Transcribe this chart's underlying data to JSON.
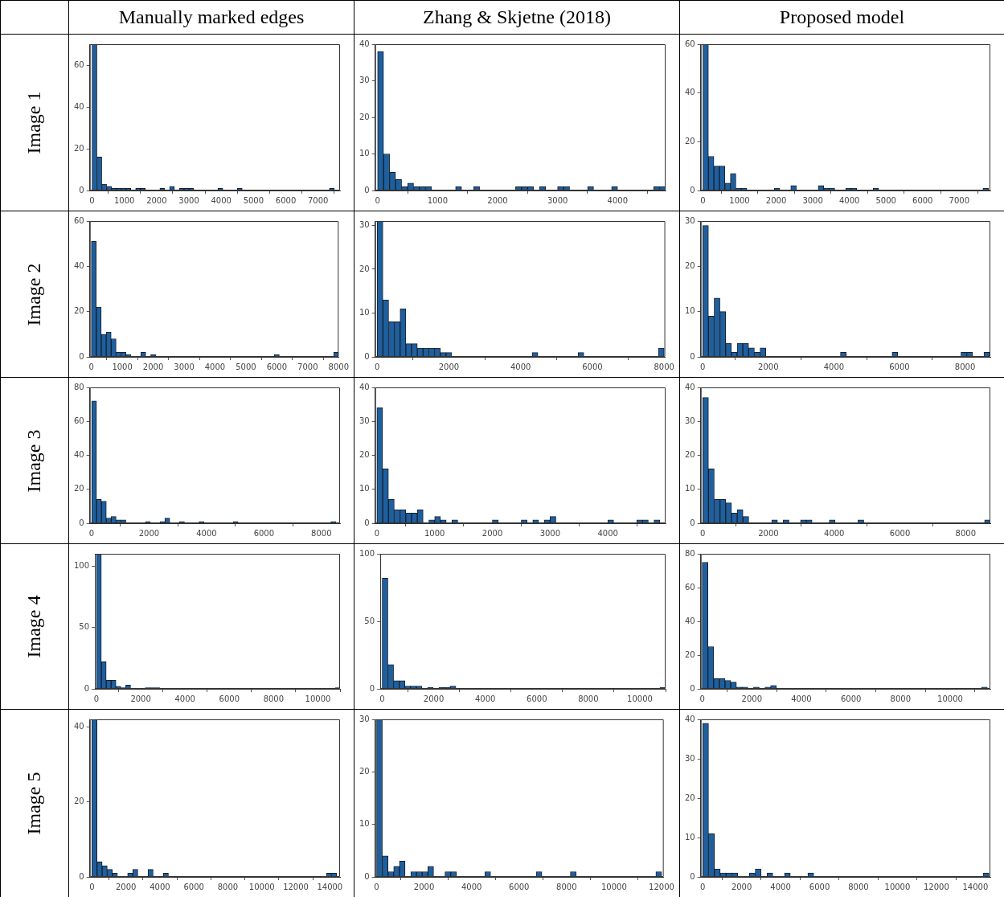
{
  "chart_data": [
    {
      "type": "histogram",
      "title": "Manually marked edges",
      "ylabel": "Image 1",
      "color": "#1f5f9e",
      "xlim": [
        -70,
        7680
      ],
      "ylim": [
        0,
        70
      ],
      "xticks": [
        0,
        1000,
        2000,
        3000,
        4000,
        5000,
        6000,
        7000
      ],
      "yticks": [
        0,
        20,
        40,
        60
      ],
      "bins": [
        0,
        150,
        300,
        450,
        600,
        750,
        900,
        1050,
        1200,
        1350,
        1500,
        1650,
        1800,
        1950,
        2100,
        2250,
        2400,
        2550,
        2700,
        2850,
        3000,
        3150,
        3300,
        3450,
        3600,
        3750,
        3900,
        4050,
        4200,
        4350,
        4500,
        4650,
        4800,
        4950,
        5100,
        5250,
        5400,
        5550,
        5700,
        5850,
        6000,
        6150,
        6300,
        6450,
        6600,
        6750,
        6900,
        7050,
        7200,
        7350,
        7500
      ],
      "values": [
        70,
        16,
        3,
        2,
        1,
        1,
        1,
        1,
        0,
        1,
        1,
        0,
        0,
        0,
        1,
        0,
        2,
        0,
        1,
        1,
        1,
        0,
        0,
        0,
        0,
        0,
        1,
        0,
        0,
        0,
        1,
        0,
        0,
        0,
        0,
        0,
        0,
        0,
        0,
        0,
        0,
        0,
        0,
        0,
        0,
        0,
        0,
        0,
        0,
        1
      ]
    },
    {
      "type": "histogram",
      "title": "Zhang & Skjetne (2018)",
      "color": "#1f5f9e",
      "xlim": [
        -40,
        4800
      ],
      "ylim": [
        0,
        40
      ],
      "xticks": [
        0,
        1000,
        2000,
        3000,
        4000
      ],
      "yticks": [
        0,
        10,
        20,
        30,
        40
      ],
      "bins": [
        0,
        100,
        200,
        300,
        400,
        500,
        600,
        700,
        800,
        900,
        1000,
        1100,
        1200,
        1300,
        1400,
        1500,
        1600,
        1700,
        1800,
        1900,
        2000,
        2100,
        2200,
        2300,
        2400,
        2500,
        2600,
        2700,
        2800,
        2900,
        3000,
        3100,
        3200,
        3300,
        3400,
        3500,
        3600,
        3700,
        3800,
        3900,
        4000,
        4100,
        4200,
        4300,
        4400,
        4500,
        4600,
        4700,
        4800
      ],
      "values": [
        38,
        10,
        5,
        3,
        1,
        2,
        1,
        1,
        1,
        0,
        0,
        0,
        0,
        1,
        0,
        0,
        1,
        0,
        0,
        0,
        0,
        0,
        0,
        1,
        1,
        1,
        0,
        1,
        0,
        0,
        1,
        1,
        0,
        0,
        0,
        1,
        0,
        0,
        0,
        1,
        0,
        0,
        0,
        0,
        0,
        0,
        1,
        1
      ]
    },
    {
      "type": "histogram",
      "title": "Proposed model",
      "color": "#1f5f9e",
      "xlim": [
        -60,
        7850
      ],
      "ylim": [
        0,
        60
      ],
      "xticks": [
        0,
        1000,
        2000,
        3000,
        4000,
        5000,
        6000,
        7000
      ],
      "yticks": [
        0,
        20,
        40,
        60
      ],
      "bins": [
        0,
        150,
        300,
        450,
        600,
        750,
        900,
        1050,
        1200,
        1350,
        1500,
        1650,
        1800,
        1950,
        2100,
        2250,
        2400,
        2550,
        2700,
        2850,
        3000,
        3150,
        3300,
        3450,
        3600,
        3750,
        3900,
        4050,
        4200,
        4350,
        4500,
        4650,
        4800,
        4950,
        5100,
        5250,
        5400,
        5550,
        5700,
        5850,
        6000,
        6150,
        6300,
        6450,
        6600,
        6750,
        6900,
        7050,
        7200,
        7350,
        7500,
        7650,
        7800
      ],
      "values": [
        60,
        14,
        10,
        10,
        3,
        7,
        1,
        1,
        0,
        0,
        0,
        0,
        0,
        1,
        0,
        0,
        2,
        0,
        0,
        0,
        0,
        2,
        1,
        1,
        0,
        0,
        1,
        1,
        0,
        0,
        0,
        1,
        0,
        0,
        0,
        0,
        0,
        0,
        0,
        0,
        0,
        0,
        0,
        0,
        0,
        0,
        0,
        0,
        0,
        0,
        0,
        1
      ]
    },
    {
      "type": "histogram",
      "ylabel": "Image 2",
      "color": "#1f5f9e",
      "xlim": [
        -50,
        8000
      ],
      "ylim": [
        0,
        60
      ],
      "xticks": [
        0,
        1000,
        2000,
        3000,
        4000,
        5000,
        6000,
        7000,
        8000
      ],
      "yticks": [
        0,
        20,
        40,
        60
      ],
      "bins": [
        0,
        160,
        320,
        480,
        640,
        800,
        960,
        1120,
        1280,
        1440,
        1600,
        1760,
        1920,
        2080,
        2240,
        2400,
        2560,
        2720,
        2880,
        3040,
        3200,
        3360,
        3520,
        3680,
        3840,
        4000,
        4160,
        4320,
        4480,
        4640,
        4800,
        4960,
        5120,
        5280,
        5440,
        5600,
        5760,
        5920,
        6080,
        6240,
        6400,
        6560,
        6720,
        6880,
        7040,
        7200,
        7360,
        7520,
        7680,
        7840,
        8000
      ],
      "values": [
        51,
        22,
        10,
        11,
        8,
        2,
        2,
        1,
        0,
        0,
        2,
        0,
        1,
        0,
        0,
        0,
        0,
        0,
        0,
        0,
        0,
        0,
        0,
        0,
        0,
        0,
        0,
        0,
        0,
        0,
        0,
        0,
        0,
        0,
        0,
        0,
        0,
        1,
        0,
        0,
        0,
        0,
        0,
        0,
        0,
        0,
        0,
        0,
        0,
        2
      ]
    },
    {
      "type": "histogram",
      "color": "#1f5f9e",
      "xlim": [
        -55,
        8030
      ],
      "ylim": [
        0,
        31
      ],
      "xticks": [
        0,
        2000,
        4000,
        6000,
        8000
      ],
      "yticks": [
        0,
        10,
        20,
        30
      ],
      "bins": [
        0,
        160,
        320,
        480,
        640,
        800,
        960,
        1120,
        1280,
        1440,
        1600,
        1760,
        1920,
        2080,
        2240,
        2400,
        2560,
        2720,
        2880,
        3040,
        3200,
        3360,
        3520,
        3680,
        3840,
        4000,
        4160,
        4320,
        4480,
        4640,
        4800,
        4960,
        5120,
        5280,
        5440,
        5600,
        5760,
        5920,
        6080,
        6240,
        6400,
        6560,
        6720,
        6880,
        7040,
        7200,
        7360,
        7520,
        7680,
        7840,
        8000
      ],
      "values": [
        31,
        13,
        8,
        8,
        11,
        3,
        3,
        2,
        2,
        2,
        2,
        1,
        1,
        0,
        0,
        0,
        0,
        0,
        0,
        0,
        0,
        0,
        0,
        0,
        0,
        0,
        0,
        1,
        0,
        0,
        0,
        0,
        0,
        0,
        0,
        1,
        0,
        0,
        0,
        0,
        0,
        0,
        0,
        0,
        0,
        0,
        0,
        0,
        0,
        2
      ]
    },
    {
      "type": "histogram",
      "color": "#1f5f9e",
      "xlim": [
        -60,
        8770
      ],
      "ylim": [
        0,
        30
      ],
      "xticks": [
        0,
        2000,
        4000,
        6000,
        8000
      ],
      "yticks": [
        0,
        10,
        20,
        30
      ],
      "bins": [
        0,
        175,
        350,
        525,
        700,
        875,
        1050,
        1225,
        1400,
        1575,
        1750,
        1925,
        2100,
        2275,
        2450,
        2625,
        2800,
        2975,
        3150,
        3325,
        3500,
        3675,
        3850,
        4025,
        4200,
        4375,
        4550,
        4725,
        4900,
        5075,
        5250,
        5425,
        5600,
        5775,
        5950,
        6125,
        6300,
        6475,
        6650,
        6825,
        7000,
        7175,
        7350,
        7525,
        7700,
        7875,
        8050,
        8225,
        8400,
        8575,
        8750
      ],
      "values": [
        29,
        9,
        13,
        10,
        3,
        1,
        3,
        3,
        2,
        1,
        2,
        0,
        0,
        0,
        0,
        0,
        0,
        0,
        0,
        0,
        0,
        0,
        0,
        0,
        1,
        0,
        0,
        0,
        0,
        0,
        0,
        0,
        0,
        1,
        0,
        0,
        0,
        0,
        0,
        0,
        0,
        0,
        0,
        0,
        0,
        1,
        1,
        0,
        0,
        1
      ]
    },
    {
      "type": "histogram",
      "ylabel": "Image 3",
      "color": "#1f5f9e",
      "xlim": [
        -65,
        8650
      ],
      "ylim": [
        0,
        80
      ],
      "xticks": [
        0,
        2000,
        4000,
        6000,
        8000
      ],
      "yticks": [
        0,
        20,
        40,
        60,
        80
      ],
      "bins": [
        0,
        170,
        340,
        510,
        680,
        850,
        1020,
        1190,
        1360,
        1530,
        1700,
        1870,
        2040,
        2210,
        2380,
        2550,
        2720,
        2890,
        3060,
        3230,
        3400,
        3570,
        3740,
        3910,
        4080,
        4250,
        4420,
        4590,
        4760,
        4930,
        5100,
        5270,
        5440,
        5610,
        5780,
        5950,
        6120,
        6290,
        6460,
        6630,
        6800,
        6970,
        7140,
        7310,
        7480,
        7650,
        7820,
        7990,
        8160,
        8330,
        8500
      ],
      "values": [
        72,
        14,
        13,
        3,
        4,
        2,
        2,
        0,
        0,
        0,
        0,
        1,
        0,
        0,
        1,
        3,
        0,
        0,
        1,
        0,
        0,
        0,
        1,
        0,
        0,
        0,
        0,
        0,
        0,
        1,
        0,
        0,
        0,
        0,
        0,
        0,
        0,
        0,
        0,
        0,
        0,
        0,
        0,
        0,
        0,
        0,
        0,
        0,
        0,
        1
      ]
    },
    {
      "type": "histogram",
      "color": "#1f5f9e",
      "xlim": [
        -30,
        5000
      ],
      "ylim": [
        0,
        40
      ],
      "xticks": [
        0,
        1000,
        2000,
        3000,
        4000
      ],
      "yticks": [
        0,
        10,
        20,
        30,
        40
      ],
      "bins": [
        0,
        100,
        200,
        300,
        400,
        500,
        600,
        700,
        800,
        900,
        1000,
        1100,
        1200,
        1300,
        1400,
        1500,
        1600,
        1700,
        1800,
        1900,
        2000,
        2100,
        2200,
        2300,
        2400,
        2500,
        2600,
        2700,
        2800,
        2900,
        3000,
        3100,
        3200,
        3300,
        3400,
        3500,
        3600,
        3700,
        3800,
        3900,
        4000,
        4100,
        4200,
        4300,
        4400,
        4500,
        4600,
        4700,
        4800,
        4900,
        5000
      ],
      "values": [
        34,
        16,
        7,
        4,
        4,
        3,
        3,
        4,
        0,
        1,
        2,
        1,
        0,
        1,
        0,
        0,
        0,
        0,
        0,
        0,
        1,
        0,
        0,
        0,
        0,
        1,
        0,
        1,
        0,
        1,
        2,
        0,
        0,
        0,
        0,
        0,
        0,
        0,
        0,
        0,
        1,
        0,
        0,
        0,
        0,
        1,
        1,
        0,
        1,
        0
      ]
    },
    {
      "type": "histogram",
      "color": "#1f5f9e",
      "xlim": [
        -60,
        8750
      ],
      "ylim": [
        0,
        40
      ],
      "xticks": [
        0,
        2000,
        4000,
        6000,
        8000
      ],
      "yticks": [
        0,
        10,
        20,
        30,
        40
      ],
      "bins": [
        0,
        175,
        350,
        525,
        700,
        875,
        1050,
        1225,
        1400,
        1575,
        1750,
        1925,
        2100,
        2275,
        2450,
        2625,
        2800,
        2975,
        3150,
        3325,
        3500,
        3675,
        3850,
        4025,
        4200,
        4375,
        4550,
        4725,
        4900,
        5075,
        5250,
        5425,
        5600,
        5775,
        5950,
        6125,
        6300,
        6475,
        6650,
        6825,
        7000,
        7175,
        7350,
        7525,
        7700,
        7875,
        8050,
        8225,
        8400,
        8575,
        8750
      ],
      "values": [
        37,
        16,
        7,
        7,
        6,
        3,
        4,
        2,
        0,
        0,
        0,
        0,
        1,
        0,
        1,
        0,
        0,
        1,
        1,
        0,
        0,
        0,
        1,
        0,
        0,
        0,
        0,
        1,
        0,
        0,
        0,
        0,
        0,
        0,
        0,
        0,
        0,
        0,
        0,
        0,
        0,
        0,
        0,
        0,
        0,
        0,
        0,
        0,
        0,
        1
      ]
    },
    {
      "type": "histogram",
      "ylabel": "Image 4",
      "color": "#1f5f9e",
      "xlim": [
        -70,
        11000
      ],
      "ylim": [
        0,
        110
      ],
      "xticks": [
        0,
        2000,
        4000,
        6000,
        8000,
        10000
      ],
      "yticks": [
        0,
        50,
        100
      ],
      "bins": [
        0,
        220,
        440,
        660,
        880,
        1100,
        1320,
        1540,
        1760,
        1980,
        2200,
        2420,
        2640,
        2860,
        3080,
        3300,
        3520,
        3740,
        3960,
        4180,
        4400,
        4620,
        4840,
        5060,
        5280,
        5500,
        5720,
        5940,
        6160,
        6380,
        6600,
        6820,
        7040,
        7260,
        7480,
        7700,
        7920,
        8140,
        8360,
        8580,
        8800,
        9020,
        9240,
        9460,
        9680,
        9900,
        10120,
        10340,
        10560,
        10780,
        11000
      ],
      "values": [
        110,
        22,
        7,
        7,
        2,
        1,
        3,
        0,
        0,
        0,
        1,
        1,
        1,
        0,
        0,
        0,
        0,
        0,
        0,
        0,
        0,
        0,
        0,
        0,
        0,
        0,
        0,
        0,
        0,
        0,
        0,
        0,
        0,
        0,
        0,
        0,
        0,
        0,
        0,
        0,
        0,
        0,
        0,
        0,
        0,
        0,
        0,
        0,
        0,
        1
      ]
    },
    {
      "type": "histogram",
      "color": "#1f5f9e",
      "xlim": [
        -75,
        11000
      ],
      "ylim": [
        0,
        100
      ],
      "xticks": [
        0,
        2000,
        4000,
        6000,
        8000,
        10000
      ],
      "yticks": [
        0,
        50,
        100
      ],
      "bins": [
        0,
        220,
        440,
        660,
        880,
        1100,
        1320,
        1540,
        1760,
        1980,
        2200,
        2420,
        2640,
        2860,
        3080,
        3300,
        3520,
        3740,
        3960,
        4180,
        4400,
        4620,
        4840,
        5060,
        5280,
        5500,
        5720,
        5940,
        6160,
        6380,
        6600,
        6820,
        7040,
        7260,
        7480,
        7700,
        7920,
        8140,
        8360,
        8580,
        8800,
        9020,
        9240,
        9460,
        9680,
        9900,
        10120,
        10340,
        10560,
        10780,
        11000
      ],
      "values": [
        82,
        18,
        6,
        6,
        2,
        2,
        2,
        0,
        1,
        0,
        1,
        1,
        2,
        0,
        0,
        0,
        0,
        0,
        0,
        0,
        0,
        0,
        0,
        0,
        0,
        0,
        0,
        0,
        0,
        0,
        0,
        0,
        0,
        0,
        0,
        0,
        0,
        0,
        0,
        0,
        0,
        0,
        0,
        0,
        0,
        0,
        0,
        0,
        0,
        1
      ]
    },
    {
      "type": "histogram",
      "color": "#1f5f9e",
      "xlim": [
        -60,
        11620
      ],
      "ylim": [
        0,
        80
      ],
      "xticks": [
        0,
        2000,
        4000,
        6000,
        8000,
        10000
      ],
      "yticks": [
        0,
        20,
        40,
        60,
        80
      ],
      "bins": [
        0,
        230,
        460,
        690,
        920,
        1150,
        1380,
        1610,
        1840,
        2070,
        2300,
        2530,
        2760,
        2990,
        3220,
        3450,
        3680,
        3910,
        4140,
        4370,
        4600,
        4830,
        5060,
        5290,
        5520,
        5750,
        5980,
        6210,
        6440,
        6670,
        6900,
        7130,
        7360,
        7590,
        7820,
        8050,
        8280,
        8510,
        8740,
        8970,
        9200,
        9430,
        9660,
        9890,
        10120,
        10350,
        10580,
        10810,
        11040,
        11270,
        11500
      ],
      "values": [
        75,
        25,
        6,
        6,
        5,
        4,
        1,
        1,
        0,
        1,
        0,
        1,
        2,
        0,
        0,
        0,
        0,
        0,
        0,
        0,
        0,
        0,
        0,
        0,
        0,
        0,
        0,
        0,
        0,
        0,
        0,
        0,
        0,
        0,
        0,
        0,
        0,
        0,
        0,
        0,
        0,
        0,
        0,
        0,
        0,
        0,
        0,
        0,
        0,
        1
      ]
    },
    {
      "type": "histogram",
      "ylabel": "Image 5",
      "color": "#1f5f9e",
      "xlim": [
        -125,
        14600
      ],
      "ylim": [
        0,
        42
      ],
      "xticks": [
        0,
        2000,
        4000,
        6000,
        8000,
        10000,
        12000,
        14000
      ],
      "yticks": [
        0,
        20,
        40
      ],
      "bins": [
        0,
        300,
        600,
        900,
        1200,
        1500,
        1800,
        2100,
        2400,
        2700,
        3000,
        3300,
        3600,
        3900,
        4200,
        4500,
        4800,
        5100,
        5400,
        5700,
        6000,
        6300,
        6600,
        6900,
        7200,
        7500,
        7800,
        8100,
        8400,
        8700,
        9000,
        9300,
        9600,
        9900,
        10200,
        10500,
        10800,
        11100,
        11400,
        11700,
        12000,
        12300,
        12600,
        12900,
        13200,
        13500,
        13800,
        14100,
        14400
      ],
      "values": [
        42,
        4,
        3,
        2,
        1,
        0,
        0,
        1,
        2,
        0,
        0,
        2,
        0,
        0,
        1,
        0,
        0,
        0,
        0,
        0,
        0,
        0,
        0,
        0,
        0,
        0,
        0,
        0,
        0,
        0,
        0,
        0,
        0,
        0,
        0,
        0,
        0,
        0,
        0,
        0,
        0,
        0,
        0,
        0,
        0,
        0,
        1,
        1
      ]
    },
    {
      "type": "histogram",
      "color": "#1f5f9e",
      "xlim": [
        -60,
        12090
      ],
      "ylim": [
        0,
        30
      ],
      "xticks": [
        0,
        2000,
        4000,
        6000,
        8000,
        10000,
        12000
      ],
      "yticks": [
        0,
        10,
        20,
        30
      ],
      "bins": [
        0,
        240,
        480,
        720,
        960,
        1200,
        1440,
        1680,
        1920,
        2160,
        2400,
        2640,
        2880,
        3120,
        3360,
        3600,
        3840,
        4080,
        4320,
        4560,
        4800,
        5040,
        5280,
        5520,
        5760,
        6000,
        6240,
        6480,
        6720,
        6960,
        7200,
        7440,
        7680,
        7920,
        8160,
        8400,
        8640,
        8880,
        9120,
        9360,
        9600,
        9840,
        10080,
        10320,
        10560,
        10800,
        11040,
        11280,
        11520,
        11760,
        12000
      ],
      "values": [
        30,
        4,
        1,
        2,
        3,
        0,
        1,
        1,
        1,
        2,
        0,
        0,
        1,
        1,
        0,
        0,
        0,
        0,
        0,
        1,
        0,
        0,
        0,
        0,
        0,
        0,
        0,
        0,
        1,
        0,
        0,
        0,
        0,
        0,
        1,
        0,
        0,
        0,
        0,
        0,
        0,
        0,
        0,
        0,
        0,
        0,
        0,
        0,
        0,
        1
      ]
    },
    {
      "type": "histogram",
      "color": "#1f5f9e",
      "xlim": [
        -100,
        14770
      ],
      "ylim": [
        0,
        40
      ],
      "xticks": [
        0,
        2000,
        4000,
        6000,
        8000,
        10000,
        12000,
        14000
      ],
      "yticks": [
        0,
        10,
        20,
        30,
        40
      ],
      "bins": [
        0,
        300,
        600,
        900,
        1200,
        1500,
        1800,
        2100,
        2400,
        2700,
        3000,
        3300,
        3600,
        3900,
        4200,
        4500,
        4800,
        5100,
        5400,
        5700,
        6000,
        6300,
        6600,
        6900,
        7200,
        7500,
        7800,
        8100,
        8400,
        8700,
        9000,
        9300,
        9600,
        9900,
        10200,
        10500,
        10800,
        11100,
        11400,
        11700,
        12000,
        12300,
        12600,
        12900,
        13200,
        13500,
        13800,
        14100,
        14400,
        14700
      ],
      "values": [
        39,
        11,
        2,
        1,
        1,
        1,
        0,
        0,
        1,
        2,
        0,
        1,
        0,
        0,
        1,
        0,
        0,
        0,
        1,
        0,
        0,
        0,
        0,
        0,
        0,
        0,
        0,
        0,
        0,
        0,
        0,
        0,
        0,
        0,
        0,
        0,
        0,
        0,
        0,
        0,
        0,
        0,
        0,
        0,
        0,
        0,
        0,
        0,
        1
      ]
    }
  ]
}
